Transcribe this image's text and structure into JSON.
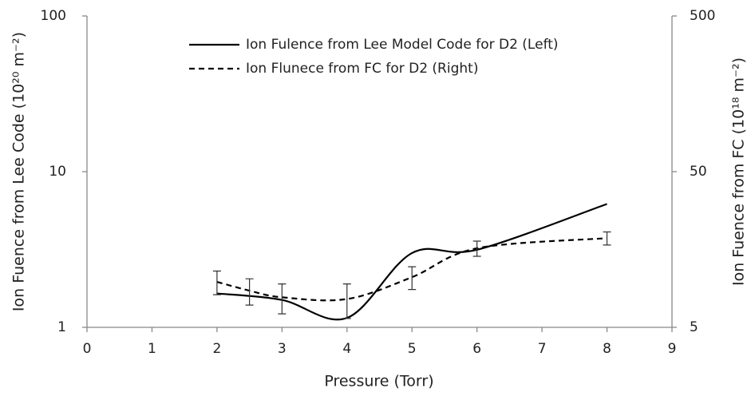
{
  "chart_data": {
    "type": "line",
    "xlabel": "Pressure (Torr)",
    "ylabel": "Ion Fuence from Lee Code (10²⁰ m⁻²)",
    "y2label": "Ion Fuence from FC (10¹⁸ m⁻²)",
    "xlim": [
      0,
      9
    ],
    "xticks": [
      0,
      1,
      2,
      3,
      4,
      5,
      6,
      7,
      8,
      9
    ],
    "ylim": [
      1,
      100
    ],
    "yticks": [
      1,
      10,
      100
    ],
    "yscale": "log",
    "y2lim": [
      5,
      500
    ],
    "y2ticks": [
      5,
      50,
      500
    ],
    "y2scale": "log",
    "grid": false,
    "legend": "upper center",
    "series": [
      {
        "name": "Ion Fulence from Lee Model Code for D2 (Left)",
        "color": "#000000",
        "line_style": "solid",
        "smooth": true,
        "x": [
          2,
          3,
          4,
          5,
          6,
          8
        ],
        "values": [
          1.65,
          1.5,
          1.15,
          3.0,
          3.15,
          6.2
        ]
      },
      {
        "name": "Ion Flunece from FC for D2 (Right)",
        "color": "#000000",
        "line_style": "dashed",
        "smooth": true,
        "axis": "y2",
        "x": [
          2,
          2.5,
          3,
          4,
          5,
          6,
          8
        ],
        "values": [
          9.8,
          8.6,
          7.8,
          7.6,
          10.5,
          16.1,
          18.7
        ],
        "error": [
          1.7,
          1.65,
          1.7,
          1.9,
          1.75,
          1.8,
          1.8
        ]
      }
    ]
  }
}
